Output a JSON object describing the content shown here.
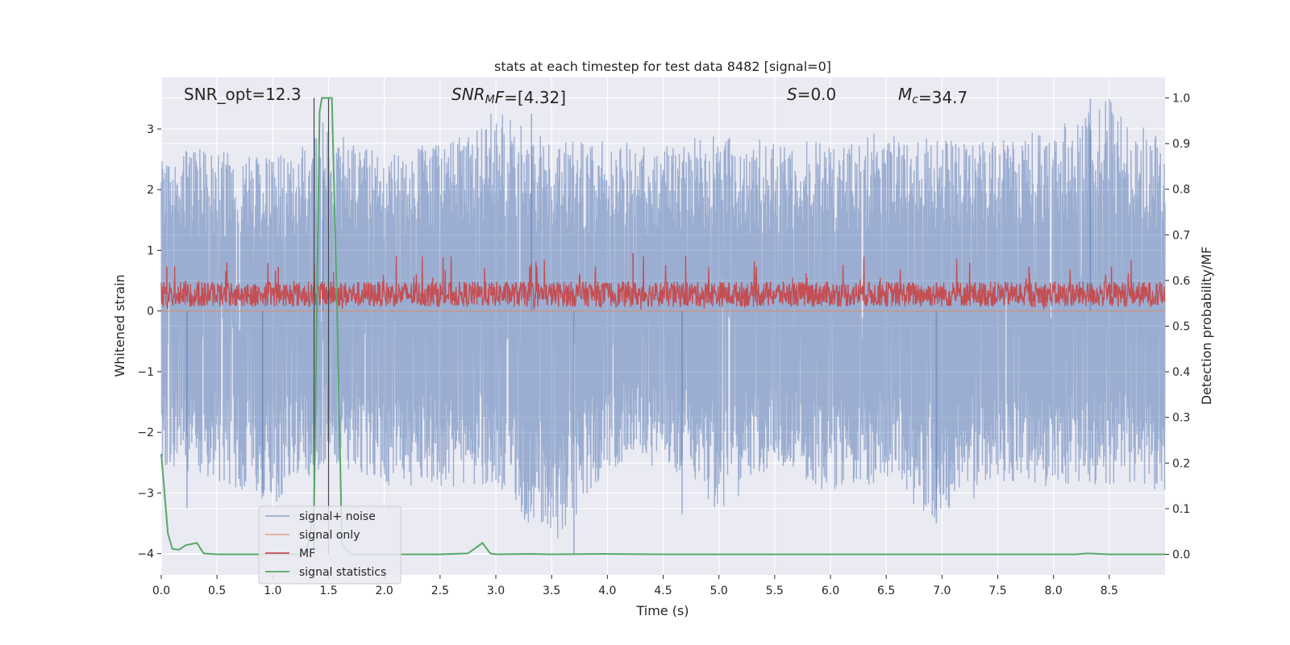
{
  "chart_data": {
    "type": "line",
    "title": "stats at each timestep for test data 8482 [signal=0]",
    "xlabel": "Time (s)",
    "ylabel": "Whitened strain",
    "y2label": "Detection probability/MF",
    "xlim": [
      0.0,
      9.0
    ],
    "ylim": [
      -4.35,
      3.85
    ],
    "y2lim": [
      -0.045,
      1.045
    ],
    "x_ticks": [
      0.0,
      0.5,
      1.0,
      1.5,
      2.0,
      2.5,
      3.0,
      3.5,
      4.0,
      4.5,
      5.0,
      5.5,
      6.0,
      6.5,
      7.0,
      7.5,
      8.0,
      8.5
    ],
    "x_tick_labels": [
      "0.0",
      "0.5",
      "1.0",
      "1.5",
      "2.0",
      "2.5",
      "3.0",
      "3.5",
      "4.0",
      "4.5",
      "5.0",
      "5.5",
      "6.0",
      "6.5",
      "7.0",
      "7.5",
      "8.0",
      "8.5"
    ],
    "y_ticks": [
      3,
      2,
      1,
      0,
      -1,
      -2,
      -3,
      -4
    ],
    "y_tick_labels": [
      "3",
      "2",
      "1",
      "0",
      "−1",
      "−2",
      "−3",
      "−4"
    ],
    "y2_ticks": [
      1.0,
      0.9,
      0.8,
      0.7,
      0.6,
      0.5,
      0.4,
      0.3,
      0.2,
      0.1,
      0.0
    ],
    "y2_tick_labels": [
      "1.0",
      "0.9",
      "0.8",
      "0.7",
      "0.6",
      "0.5",
      "0.4",
      "0.3",
      "0.2",
      "0.1",
      "0.0"
    ],
    "grid": true,
    "legend_position": "lower-left",
    "annotations": [
      {
        "parts": [
          {
            "text": "SNR_opt=12.3",
            "italic": false
          }
        ]
      },
      {
        "parts": [
          {
            "text": "SNR",
            "italic": true
          },
          {
            "text": "M",
            "italic": true,
            "sub": true
          },
          {
            "text": "F",
            "italic": true
          },
          {
            "text": "=[4.32]",
            "italic": false
          }
        ]
      },
      {
        "parts": [
          {
            "text": "S",
            "italic": true
          },
          {
            "text": "=0.0",
            "italic": false
          }
        ]
      },
      {
        "parts": [
          {
            "text": "M",
            "italic": true
          },
          {
            "text": "c",
            "italic": true,
            "sub": true
          },
          {
            "text": "=34.7",
            "italic": false
          }
        ]
      }
    ],
    "vertical_lines_x": [
      1.37,
      1.5
    ],
    "series": [
      {
        "name": "signal+ noise",
        "color": "#4c72b0",
        "alpha": 0.5,
        "axis": "left",
        "style": "dense-noise",
        "envelope_x": [
          0.0,
          0.5,
          1.0,
          1.5,
          2.0,
          2.5,
          3.0,
          3.5,
          4.0,
          4.5,
          5.0,
          5.5,
          6.0,
          6.5,
          7.0,
          7.5,
          8.0,
          8.5,
          9.0
        ],
        "envelope_max": [
          2.6,
          2.7,
          2.5,
          3.0,
          2.6,
          2.8,
          3.3,
          2.8,
          2.8,
          2.8,
          2.9,
          2.8,
          2.8,
          3.0,
          2.8,
          2.9,
          3.0,
          3.5,
          2.8
        ],
        "envelope_min": [
          -2.6,
          -2.8,
          -3.2,
          -2.5,
          -2.9,
          -2.9,
          -2.9,
          -4.0,
          -2.6,
          -2.6,
          -3.3,
          -2.6,
          -3.0,
          -2.9,
          -3.5,
          -2.8,
          -2.9,
          -2.9,
          -3.0
        ],
        "min_points": [
          {
            "x": 0.23,
            "y": -3.25
          },
          {
            "x": 0.91,
            "y": -3.0
          },
          {
            "x": 3.7,
            "y": -4.0
          },
          {
            "x": 4.67,
            "y": -3.35
          },
          {
            "x": 6.95,
            "y": -3.5
          }
        ],
        "max_points": [
          {
            "x": 3.32,
            "y": 3.25
          },
          {
            "x": 8.33,
            "y": 3.5
          },
          {
            "x": 1.45,
            "y": 3.1
          }
        ]
      },
      {
        "name": "signal only",
        "color": "#dd8452",
        "alpha": 0.6,
        "axis": "left",
        "style": "flat",
        "x": [
          0.0,
          9.0
        ],
        "y": [
          0.0,
          0.0
        ]
      },
      {
        "name": "MF",
        "color": "#c44e52",
        "alpha": 1.0,
        "axis": "right",
        "style": "dense-noise",
        "center": 0.57,
        "halfwidth": 0.028,
        "peak_points": [
          {
            "x": 1.05,
            "y": 0.63
          },
          {
            "x": 4.23,
            "y": 0.66
          },
          {
            "x": 0.05,
            "y": 0.63
          },
          {
            "x": 7.78,
            "y": 0.63
          },
          {
            "x": 8.52,
            "y": 0.63
          }
        ]
      },
      {
        "name": "signal statistics",
        "color": "#55a868",
        "alpha": 1.0,
        "axis": "right",
        "style": "line",
        "x": [
          0.0,
          0.06,
          0.1,
          0.16,
          0.22,
          0.26,
          0.32,
          0.38,
          0.5,
          1.0,
          1.3,
          1.37,
          1.42,
          1.44,
          1.5,
          1.53,
          1.58,
          1.62,
          1.7,
          2.0,
          2.5,
          2.75,
          2.88,
          2.95,
          3.0,
          3.3,
          3.5,
          3.95,
          4.5,
          5.0,
          6.0,
          7.0,
          8.0,
          8.2,
          8.3,
          8.5,
          9.0
        ],
        "y": [
          0.22,
          0.045,
          0.012,
          0.01,
          0.02,
          0.022,
          0.025,
          0.002,
          0.0,
          0.0,
          0.0,
          0.1,
          0.97,
          1.0,
          1.0,
          1.0,
          0.5,
          0.02,
          0.0,
          0.0,
          0.0,
          0.002,
          0.025,
          0.002,
          0.0,
          0.001,
          0.0,
          0.001,
          0.0,
          0.0,
          0.0,
          0.0,
          0.0,
          0.0,
          0.002,
          0.0,
          0.0
        ]
      }
    ]
  }
}
